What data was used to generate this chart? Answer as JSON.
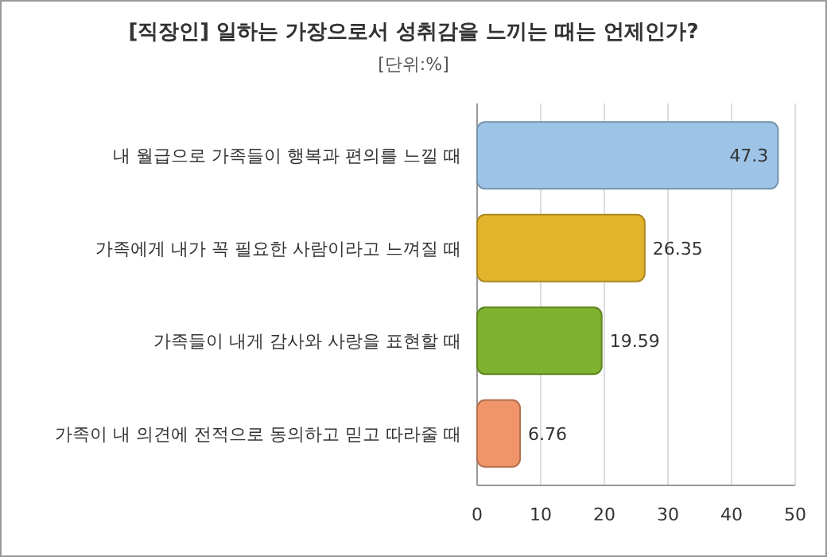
{
  "chart_data": {
    "type": "bar",
    "orientation": "horizontal",
    "title": "[직장인] 일하는 가장으로서 성취감을 느끼는 때는 언제인가?",
    "subtitle": "[단위:%]",
    "categories": [
      "내 월급으로 가족들이 행복과 편의를 느낄 때",
      "가족에게 내가 꼭 필요한 사람이라고 느껴질 때",
      "가족들이 내게 감사와 사랑을 표현할 때",
      "가족이 내 의견에 전적으로 동의하고 믿고 따라줄 때"
    ],
    "values": [
      47.3,
      26.35,
      19.59,
      6.76
    ],
    "colors": [
      "#9dc3e6",
      "#e2b42c",
      "#7fb22e",
      "#f0956a"
    ],
    "xlim": [
      0,
      50
    ],
    "xticks": [
      0,
      10,
      20,
      30,
      40,
      50
    ],
    "grid": "x",
    "data_labels": true
  }
}
